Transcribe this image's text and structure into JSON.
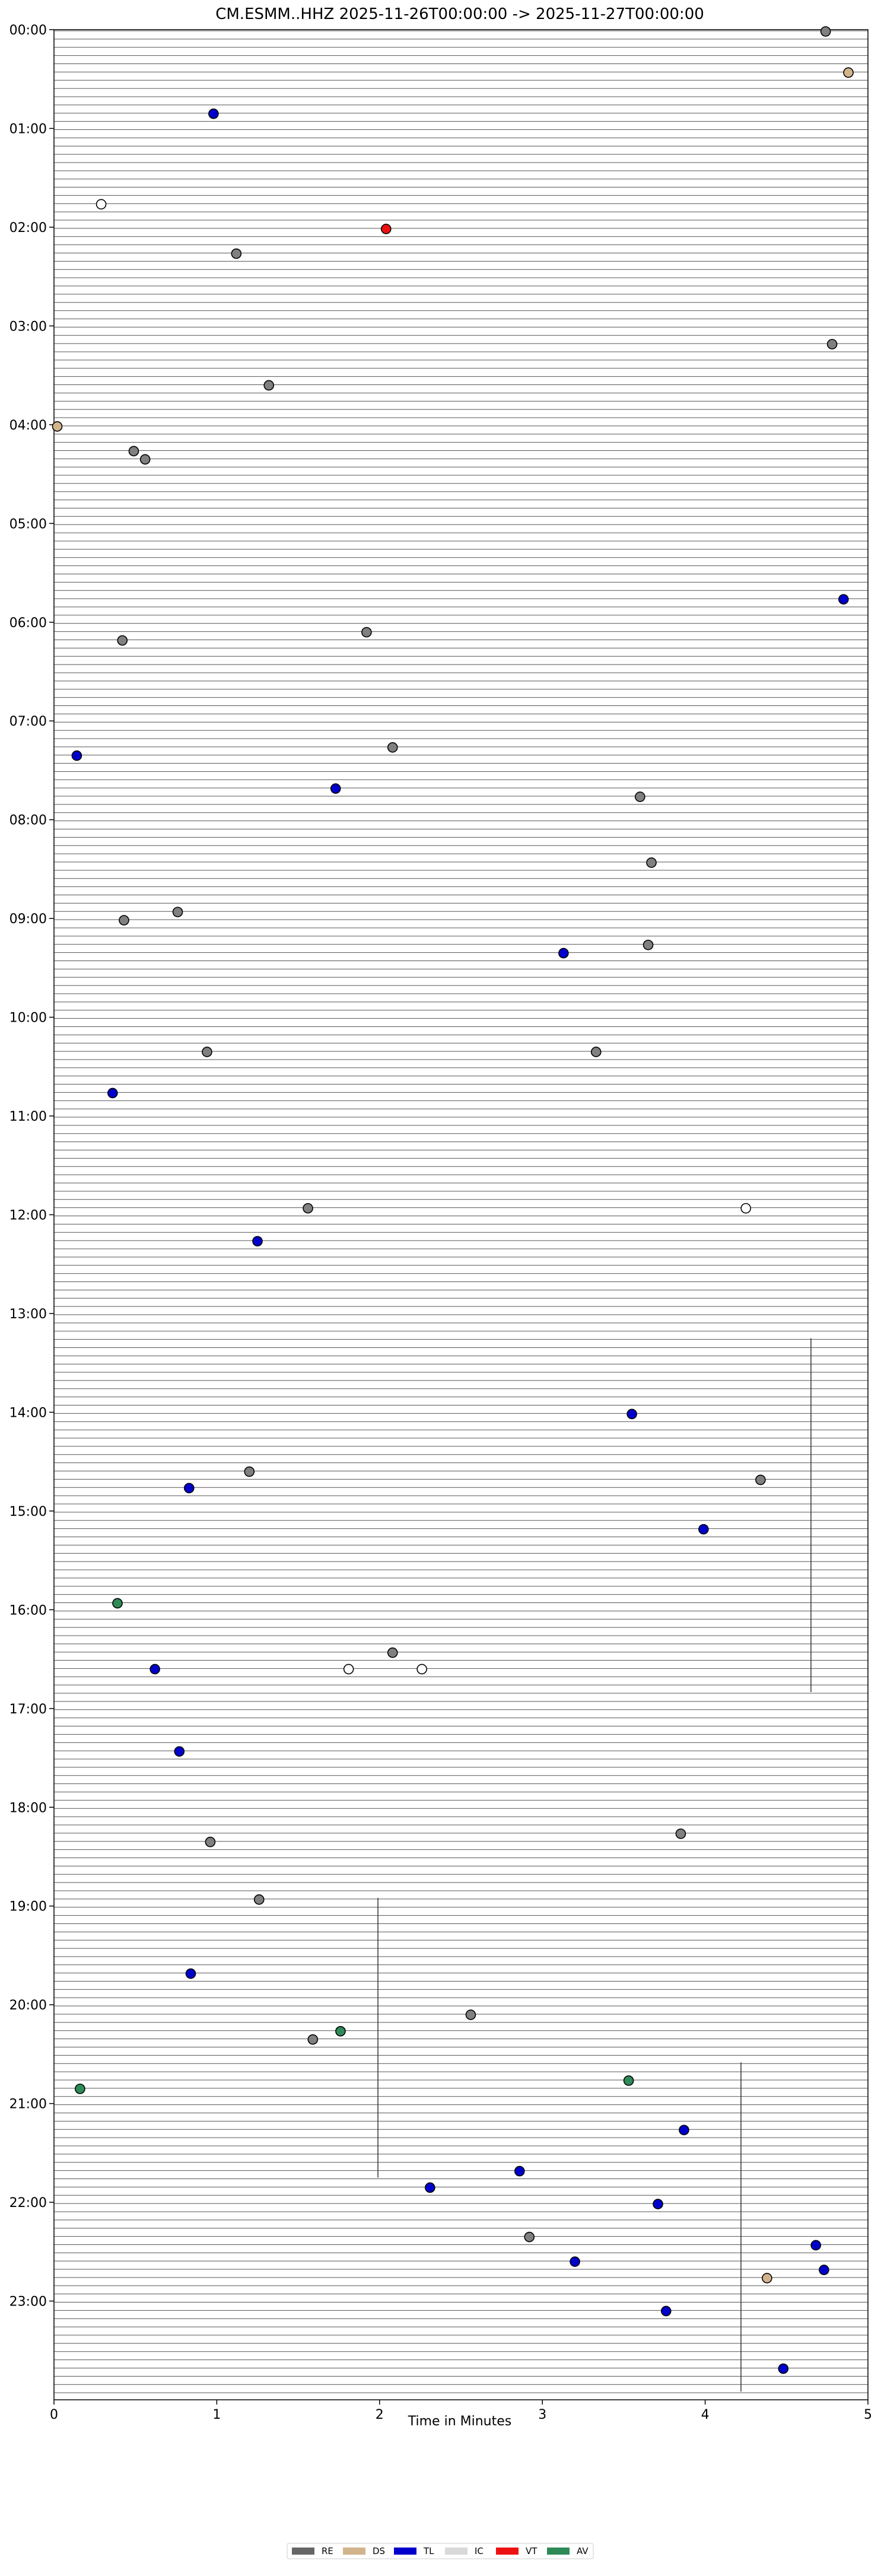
{
  "chart_data": {
    "type": "scatter",
    "title": "CM.ESMM..HHZ  2025-11-26T00:00:00 -> 2025-11-27T00:00:00",
    "xlabel": "Time in Minutes",
    "ylabel": "",
    "xlim": [
      0,
      5
    ],
    "ylim_minutes_of_day": [
      0,
      1440
    ],
    "grid": false,
    "trace_interval_minutes": 5,
    "x_ticks": [
      "0",
      "1",
      "2",
      "3",
      "4",
      "5"
    ],
    "y_ticks": [
      "00:00",
      "01:00",
      "02:00",
      "03:00",
      "04:00",
      "05:00",
      "06:00",
      "07:00",
      "08:00",
      "09:00",
      "10:00",
      "11:00",
      "12:00",
      "13:00",
      "14:00",
      "15:00",
      "16:00",
      "17:00",
      "18:00",
      "19:00",
      "20:00",
      "21:00",
      "22:00",
      "23:00"
    ],
    "legend": {
      "placement": "bottom-center",
      "entries": [
        {
          "label": "RE",
          "color": "#666666"
        },
        {
          "label": "DS",
          "color": "#d2b48c"
        },
        {
          "label": "TL",
          "color": "#0000cc"
        },
        {
          "label": "IC",
          "color": "#d9d9d9"
        },
        {
          "label": "VT",
          "color": "#ee1111"
        },
        {
          "label": "AV",
          "color": "#2e8b57"
        }
      ]
    },
    "categories_colors": {
      "RE": "#808080",
      "DS": "#d2b48c",
      "TL": "#0000cc",
      "IC": "#ffffff",
      "VT": "#ee1111",
      "AV": "#2e8b57"
    },
    "events": [
      {
        "time": "00:00",
        "minute": 4.74,
        "class": "RE"
      },
      {
        "time": "00:25",
        "minute": 4.88,
        "class": "DS"
      },
      {
        "time": "00:50",
        "minute": 0.98,
        "class": "TL"
      },
      {
        "time": "01:45",
        "minute": 0.29,
        "class": "IC"
      },
      {
        "time": "02:00",
        "minute": 2.04,
        "class": "VT"
      },
      {
        "time": "02:15",
        "minute": 1.12,
        "class": "RE"
      },
      {
        "time": "03:10",
        "minute": 4.78,
        "class": "RE"
      },
      {
        "time": "03:35",
        "minute": 1.32,
        "class": "RE"
      },
      {
        "time": "04:00",
        "minute": 0.02,
        "class": "DS"
      },
      {
        "time": "04:15",
        "minute": 0.49,
        "class": "RE"
      },
      {
        "time": "04:20",
        "minute": 0.56,
        "class": "RE"
      },
      {
        "time": "05:45",
        "minute": 4.85,
        "class": "TL"
      },
      {
        "time": "06:05",
        "minute": 1.92,
        "class": "RE"
      },
      {
        "time": "06:10",
        "minute": 0.42,
        "class": "RE"
      },
      {
        "time": "07:15",
        "minute": 2.08,
        "class": "RE"
      },
      {
        "time": "07:20",
        "minute": 0.14,
        "class": "TL"
      },
      {
        "time": "07:40",
        "minute": 1.73,
        "class": "TL"
      },
      {
        "time": "07:45",
        "minute": 3.6,
        "class": "RE"
      },
      {
        "time": "08:25",
        "minute": 3.67,
        "class": "RE"
      },
      {
        "time": "08:55",
        "minute": 0.76,
        "class": "RE"
      },
      {
        "time": "09:00",
        "minute": 0.43,
        "class": "RE"
      },
      {
        "time": "09:15",
        "minute": 3.65,
        "class": "RE"
      },
      {
        "time": "09:20",
        "minute": 3.13,
        "class": "TL"
      },
      {
        "time": "10:20",
        "minute": 0.94,
        "class": "RE"
      },
      {
        "time": "10:20",
        "minute": 3.33,
        "class": "RE"
      },
      {
        "time": "10:45",
        "minute": 0.36,
        "class": "TL"
      },
      {
        "time": "11:55",
        "minute": 1.56,
        "class": "RE"
      },
      {
        "time": "11:55",
        "minute": 4.25,
        "class": "IC"
      },
      {
        "time": "12:15",
        "minute": 1.25,
        "class": "TL"
      },
      {
        "time": "14:00",
        "minute": 3.55,
        "class": "TL"
      },
      {
        "time": "14:35",
        "minute": 1.2,
        "class": "RE"
      },
      {
        "time": "14:40",
        "minute": 4.34,
        "class": "RE"
      },
      {
        "time": "14:45",
        "minute": 0.83,
        "class": "TL"
      },
      {
        "time": "15:10",
        "minute": 3.99,
        "class": "TL"
      },
      {
        "time": "15:55",
        "minute": 0.39,
        "class": "AV"
      },
      {
        "time": "16:25",
        "minute": 2.08,
        "class": "RE"
      },
      {
        "time": "16:35",
        "minute": 0.62,
        "class": "TL"
      },
      {
        "time": "16:35",
        "minute": 1.81,
        "class": "IC"
      },
      {
        "time": "16:35",
        "minute": 2.26,
        "class": "IC"
      },
      {
        "time": "17:25",
        "minute": 0.77,
        "class": "TL"
      },
      {
        "time": "18:15",
        "minute": 3.85,
        "class": "RE"
      },
      {
        "time": "18:20",
        "minute": 0.96,
        "class": "RE"
      },
      {
        "time": "18:55",
        "minute": 1.26,
        "class": "RE"
      },
      {
        "time": "19:40",
        "minute": 0.84,
        "class": "TL"
      },
      {
        "time": "20:05",
        "minute": 2.56,
        "class": "RE"
      },
      {
        "time": "20:15",
        "minute": 1.76,
        "class": "AV"
      },
      {
        "time": "20:20",
        "minute": 1.59,
        "class": "RE"
      },
      {
        "time": "20:45",
        "minute": 3.53,
        "class": "AV"
      },
      {
        "time": "20:50",
        "minute": 0.16,
        "class": "AV"
      },
      {
        "time": "21:15",
        "minute": 3.87,
        "class": "TL"
      },
      {
        "time": "21:40",
        "minute": 2.86,
        "class": "TL"
      },
      {
        "time": "21:50",
        "minute": 2.31,
        "class": "TL"
      },
      {
        "time": "22:00",
        "minute": 3.71,
        "class": "TL"
      },
      {
        "time": "22:20",
        "minute": 2.92,
        "class": "RE"
      },
      {
        "time": "22:25",
        "minute": 4.68,
        "class": "TL"
      },
      {
        "time": "22:35",
        "minute": 3.2,
        "class": "TL"
      },
      {
        "time": "22:40",
        "minute": 4.73,
        "class": "TL"
      },
      {
        "time": "22:45",
        "minute": 4.38,
        "class": "DS"
      },
      {
        "time": "23:05",
        "minute": 3.76,
        "class": "TL"
      },
      {
        "time": "23:40",
        "minute": 4.48,
        "class": "TL"
      }
    ]
  }
}
